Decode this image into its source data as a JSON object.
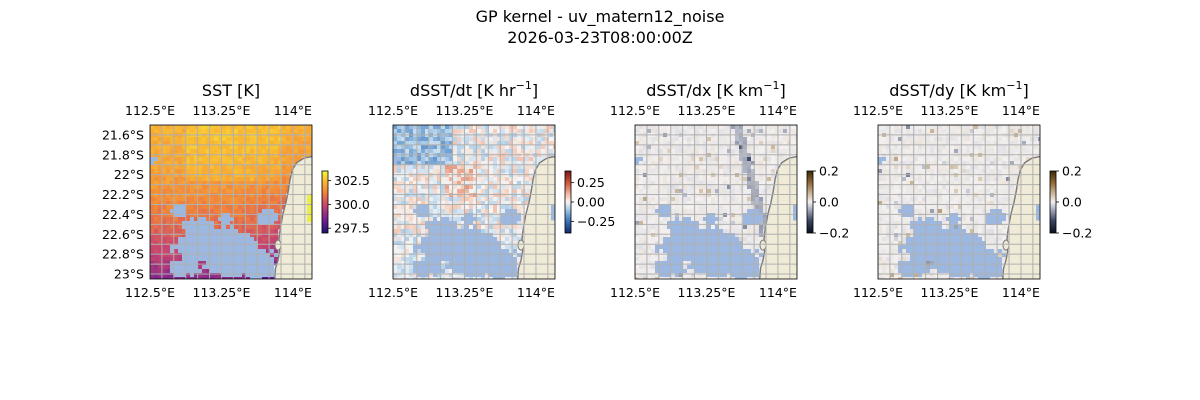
{
  "figure": {
    "title": "GP kernel - uv_matern12_noise",
    "subtitle": "2026-03-23T08:00:00Z"
  },
  "colors": {
    "land": "#efebd6",
    "coastline": "#7a7a7a",
    "mask": "#9db8e0",
    "grid": "#b0b0b0"
  },
  "chart_data": [
    {
      "type": "heatmap",
      "title": "SST [K]",
      "xticks": [
        "112.5°E",
        "113.25°E",
        "114°E"
      ],
      "yticks": [
        "21.6°S",
        "21.8°S",
        "22°S",
        "22.2°S",
        "22.4°S",
        "22.6°S",
        "22.8°S",
        "23°S"
      ],
      "xlim": [
        112.5,
        114.2
      ],
      "ylim": [
        -23.05,
        -21.5
      ],
      "colorbar": {
        "ticks": [
          "302.5",
          "300.0",
          "297.5"
        ],
        "range": [
          297,
          303.5
        ],
        "colormap": "plasma"
      }
    },
    {
      "type": "heatmap",
      "title": "dSST/dt [K hr",
      "title_sup": "−1",
      "title_end": "]",
      "xticks": [
        "112.5°E",
        "113.25°E",
        "114°E"
      ],
      "yticks": [],
      "xlim": [
        112.5,
        114.2
      ],
      "ylim": [
        -23.05,
        -21.5
      ],
      "colorbar": {
        "ticks": [
          "0.25",
          "0.00",
          "−0.25"
        ],
        "range": [
          -0.4,
          0.4
        ],
        "colormap": "diverging"
      }
    },
    {
      "type": "heatmap",
      "title": "dSST/dx [K km",
      "title_sup": "−1",
      "title_end": "]",
      "xticks": [
        "112.5°E",
        "113.25°E",
        "114°E"
      ],
      "yticks": [],
      "xlim": [
        112.5,
        114.2
      ],
      "ylim": [
        -23.05,
        -21.5
      ],
      "colorbar": {
        "ticks": [
          "0.2",
          "0.0",
          "−0.2"
        ],
        "range": [
          -0.2,
          0.2
        ],
        "colormap": "gradient"
      }
    },
    {
      "type": "heatmap",
      "title": "dSST/dy [K km",
      "title_sup": "−1",
      "title_end": "]",
      "xticks": [
        "112.5°E",
        "113.25°E",
        "114°E"
      ],
      "yticks": [],
      "xlim": [
        112.5,
        114.2
      ],
      "ylim": [
        -23.05,
        -21.5
      ],
      "colorbar": {
        "ticks": [
          "0.2",
          "0.0",
          "−0.2"
        ],
        "range": [
          -0.2,
          0.2
        ],
        "colormap": "gradient"
      }
    }
  ]
}
